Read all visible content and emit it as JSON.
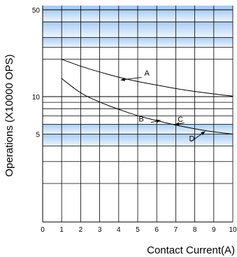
{
  "chart_data": {
    "type": "line",
    "title": "",
    "xlabel": "Contact Current(A)",
    "ylabel": "Operations (X10000 OPS)",
    "x_ticks": [
      0,
      1,
      2,
      3,
      4,
      5,
      6,
      7,
      8,
      9,
      10
    ],
    "x_tick_labels": [
      "0",
      "1",
      "2",
      "3",
      "4",
      "5",
      "6",
      "7",
      "8",
      "9",
      "10"
    ],
    "xlim": [
      0,
      10
    ],
    "yscale": "log",
    "ylim": [
      1,
      50
    ],
    "y_tick_labels": [
      {
        "value": 50,
        "label": "50"
      },
      {
        "value": 10,
        "label": "10"
      },
      {
        "value": 5,
        "label": "5"
      }
    ],
    "grid": true,
    "series": [
      {
        "name": "A",
        "x": [
          1,
          2,
          3,
          4,
          5,
          6,
          7,
          8,
          9,
          10
        ],
        "y": [
          20,
          17.5,
          15.8,
          14.3,
          13.2,
          12.4,
          11.6,
          11,
          10.5,
          10.1
        ]
      },
      {
        "name": "B",
        "x": [
          1,
          2,
          3,
          4,
          5,
          6,
          7,
          8,
          9,
          10
        ],
        "y": [
          14,
          10.6,
          9,
          7.9,
          7,
          6.4,
          5.9,
          5.5,
          5.2,
          5.0
        ]
      }
    ],
    "annotations": [
      {
        "text": "A",
        "x": 5.2,
        "y": 14.2
      },
      {
        "text": "B",
        "x": 5.5,
        "y": 6.2
      },
      {
        "text": "C",
        "x": 7.0,
        "y": 5.95
      },
      {
        "text": "D",
        "x": 8.3,
        "y": 5.3
      }
    ],
    "colors": {
      "band": "#a8ccf4",
      "grid": "#000000",
      "line": "#000000"
    }
  }
}
